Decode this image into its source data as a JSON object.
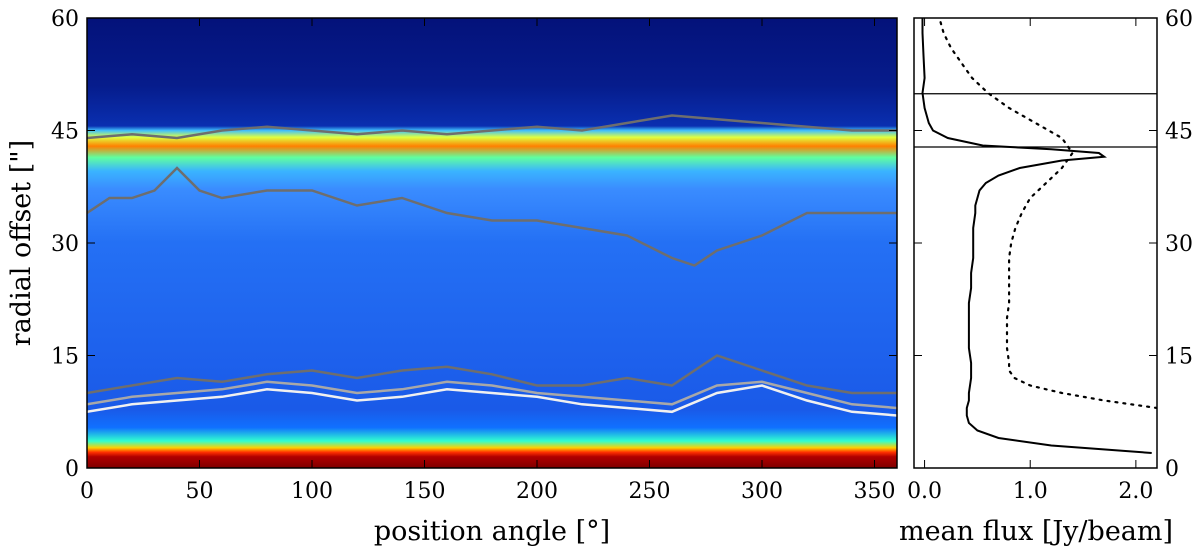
{
  "chart_data": [
    {
      "type": "heatmap",
      "title": "",
      "xlabel": "position angle [°]",
      "ylabel": "radial offset [\"]",
      "xlim": [
        0,
        360
      ],
      "ylim": [
        0,
        60
      ],
      "x_ticks": [
        "0",
        "50",
        "100",
        "150",
        "200",
        "250",
        "300",
        "350"
      ],
      "x_tick_values": [
        0,
        50,
        100,
        150,
        200,
        250,
        300,
        350
      ],
      "y_ticks": [
        "0",
        "15",
        "30",
        "45",
        "60"
      ],
      "y_tick_values": [
        0,
        15,
        30,
        45,
        60
      ],
      "colormap": "jet",
      "band_features": [
        {
          "feature": "bright core",
          "radial_offset_range": [
            0,
            2.5
          ],
          "level": "maximum (dark red)"
        },
        {
          "feature": "ring emission",
          "radial_offset_range": [
            38,
            45
          ],
          "level": "high (yellow-red)"
        },
        {
          "feature": "disk interior",
          "radial_offset_range": [
            8,
            38
          ],
          "level": "low-medium (blue)"
        },
        {
          "feature": "outside ring",
          "radial_offset_range": [
            46,
            60
          ],
          "level": "background (dark blue)"
        }
      ],
      "contours": [
        {
          "level": "low",
          "color": "#6e6e6e",
          "x": [
            0,
            20,
            40,
            60,
            80,
            100,
            120,
            140,
            160,
            180,
            200,
            220,
            240,
            260,
            280,
            300,
            320,
            340,
            360
          ],
          "y": [
            10,
            11,
            12,
            11.5,
            12.5,
            13,
            12,
            13,
            13.5,
            12.5,
            11,
            11,
            12,
            11,
            15,
            13,
            11,
            10,
            10
          ]
        },
        {
          "level": "mid",
          "color": "#a8a8a8",
          "x": [
            0,
            20,
            40,
            60,
            80,
            100,
            120,
            140,
            160,
            180,
            200,
            220,
            240,
            260,
            280,
            300,
            320,
            340,
            360
          ],
          "y": [
            8.5,
            9.5,
            10,
            10.5,
            11.5,
            11,
            10,
            10.5,
            11.5,
            11,
            10,
            9.5,
            9,
            8.5,
            11,
            11.5,
            10,
            8.5,
            8
          ]
        },
        {
          "level": "high",
          "color": "#f0f0f0",
          "x": [
            0,
            20,
            40,
            60,
            80,
            100,
            120,
            140,
            160,
            180,
            200,
            220,
            240,
            260,
            280,
            300,
            320,
            340,
            360
          ],
          "y": [
            7.5,
            8.5,
            9,
            9.5,
            10.5,
            10,
            9,
            9.5,
            10.5,
            10,
            9.5,
            8.5,
            8,
            7.5,
            10,
            11,
            9,
            7.5,
            7
          ]
        },
        {
          "level": "low",
          "color": "#6e6e6e",
          "x": [
            0,
            10,
            20,
            30,
            40,
            50,
            60,
            80,
            100,
            120,
            140,
            160,
            180,
            200,
            220,
            240,
            260,
            270,
            280,
            300,
            320,
            340,
            360
          ],
          "y": [
            34,
            36,
            36,
            37,
            40,
            37,
            36,
            37,
            37,
            35,
            36,
            34,
            33,
            33,
            32,
            31,
            28,
            27,
            29,
            31,
            34,
            34,
            34
          ]
        },
        {
          "level": "low",
          "color": "#6e6e6e",
          "x": [
            0,
            20,
            40,
            60,
            80,
            100,
            120,
            140,
            160,
            180,
            200,
            220,
            240,
            260,
            280,
            300,
            320,
            340,
            360
          ],
          "y": [
            44,
            44.5,
            44,
            45,
            45.5,
            45,
            44.5,
            45,
            44.5,
            45,
            45.5,
            45,
            46,
            47,
            46.5,
            46,
            45.5,
            45,
            45
          ]
        }
      ]
    },
    {
      "type": "line",
      "title": "",
      "xlabel": "mean flux [Jy/beam]",
      "ylabel": "",
      "xlim": [
        -0.1,
        2.2
      ],
      "ylim": [
        0,
        60
      ],
      "x_ticks": [
        "0.0",
        "1.0",
        "2.0"
      ],
      "x_tick_values": [
        0,
        1,
        2
      ],
      "y_ticks": [
        "0",
        "15",
        "30",
        "45",
        "60"
      ],
      "y_tick_values": [
        0,
        15,
        30,
        45,
        60
      ],
      "hlines": [
        42.8,
        49.9
      ],
      "series": [
        {
          "style": "solid",
          "y": [
            2,
            3,
            4,
            5,
            6,
            7,
            8,
            9,
            10,
            12,
            14,
            16,
            18,
            20,
            22,
            24,
            26,
            28,
            30,
            32,
            34,
            35,
            36,
            37,
            38,
            39,
            40,
            41,
            41.5,
            42,
            42.5,
            43,
            44,
            45,
            46,
            48,
            50,
            52,
            55,
            58,
            60
          ],
          "x": [
            2.15,
            1.2,
            0.7,
            0.5,
            0.42,
            0.4,
            0.4,
            0.42,
            0.42,
            0.44,
            0.44,
            0.42,
            0.42,
            0.42,
            0.42,
            0.44,
            0.44,
            0.46,
            0.46,
            0.46,
            0.48,
            0.48,
            0.5,
            0.52,
            0.58,
            0.7,
            0.9,
            1.3,
            1.7,
            1.65,
            1.2,
            0.55,
            0.22,
            0.08,
            0.04,
            0.0,
            -0.02,
            0.0,
            -0.01,
            -0.02,
            -0.02
          ]
        },
        {
          "style": "dotted",
          "y": [
            8,
            9,
            10,
            11,
            12,
            13,
            14,
            16,
            18,
            20,
            22,
            24,
            26,
            28,
            30,
            32,
            34,
            36,
            38,
            40,
            42,
            44,
            46,
            48,
            50,
            52,
            54,
            56,
            58,
            60
          ],
          "x": [
            2.2,
            1.7,
            1.3,
            1.0,
            0.85,
            0.8,
            0.8,
            0.78,
            0.78,
            0.78,
            0.8,
            0.8,
            0.8,
            0.8,
            0.82,
            0.86,
            0.92,
            1.0,
            1.15,
            1.3,
            1.4,
            1.3,
            1.05,
            0.8,
            0.6,
            0.45,
            0.35,
            0.25,
            0.18,
            0.14
          ]
        }
      ]
    }
  ]
}
